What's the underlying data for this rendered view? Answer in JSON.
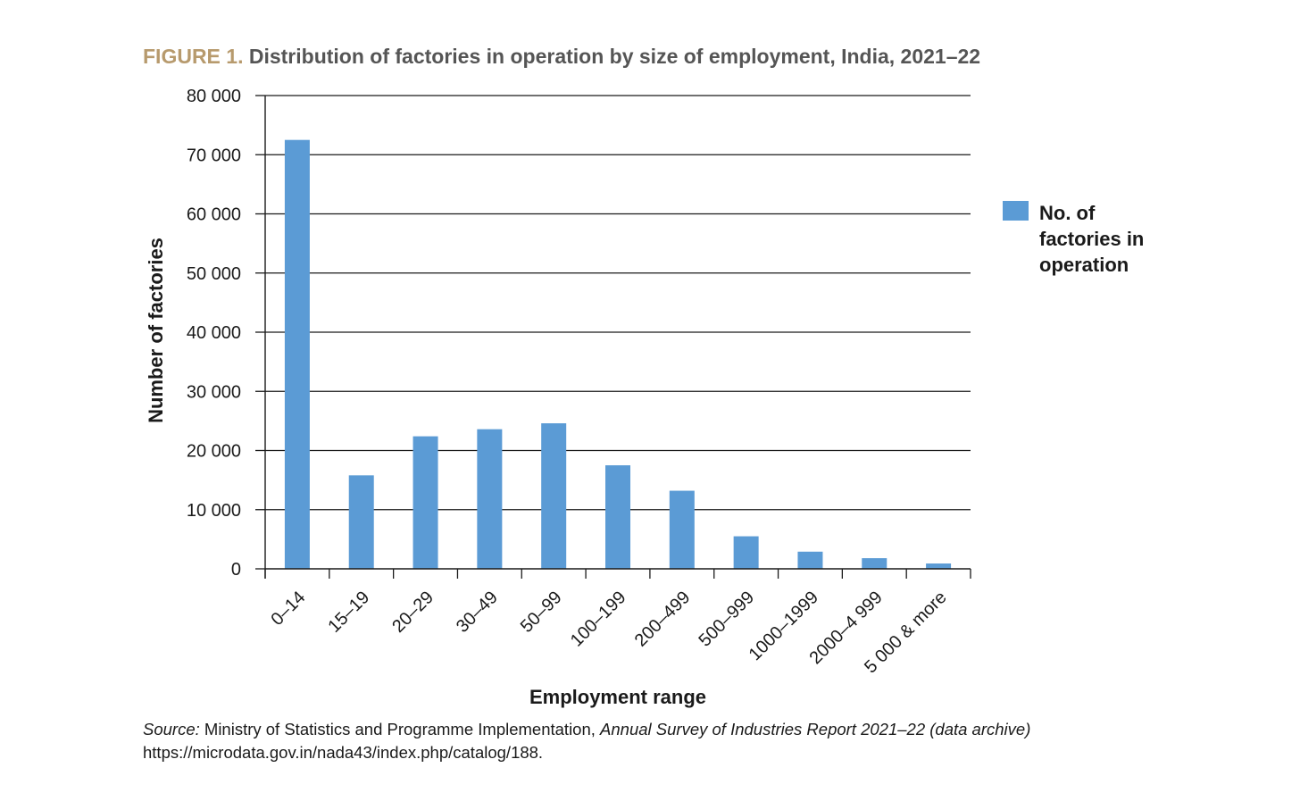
{
  "figure": {
    "label": "FIGURE 1.",
    "title": "Distribution of factories in operation by size of employment, India, 2021–22",
    "label_color": "#b79a6d",
    "title_color": "#555555"
  },
  "chart_data": {
    "type": "bar",
    "title": "Distribution of factories in operation by size of employment, India, 2021–22",
    "xlabel": "Employment range",
    "ylabel": "Number of factories",
    "categories": [
      "0–14",
      "15–19",
      "20–29",
      "30–49",
      "50–99",
      "100–199",
      "200–499",
      "500–999",
      "1000–1999",
      "2000–4 999",
      "5 000 & more"
    ],
    "series": [
      {
        "name": "No. of factories in operation",
        "color": "#5b9bd5",
        "values": [
          72500,
          15800,
          22400,
          23600,
          24600,
          17500,
          13200,
          5500,
          2900,
          1800,
          900
        ]
      }
    ],
    "ylim": [
      0,
      80000
    ],
    "yticks": [
      0,
      10000,
      20000,
      30000,
      40000,
      50000,
      60000,
      70000,
      80000
    ],
    "ytick_labels": [
      "0",
      "10 000",
      "20 000",
      "30 000",
      "40 000",
      "50 000",
      "60 000",
      "70 000",
      "80 000"
    ],
    "grid": true,
    "legend_position": "right"
  },
  "source": {
    "prefix": "Source:",
    "publisher": " Ministry of Statistics and Programme Implementation, ",
    "report": "Annual Survey of Industries Report 2021–22 (data archive)",
    "url": "https://microdata.gov.in/nada43/index.php/catalog/188."
  }
}
